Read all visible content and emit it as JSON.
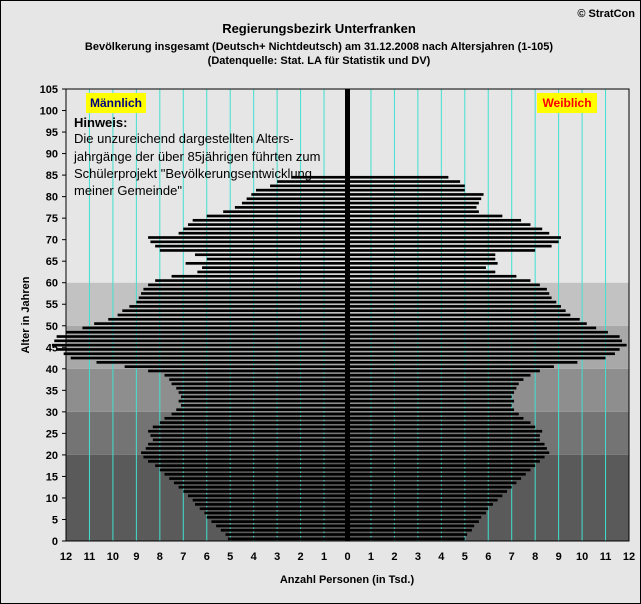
{
  "copyright": "© StratCon",
  "chart_data": {
    "type": "bar",
    "orientation": "horizontal-population-pyramid",
    "title": "Regierungsbezirk Unterfranken",
    "subtitle1": "Bevölkerung  insgesamt (Deutsch+ Nichtdeutsch) am 31.12.2008 nach Altersjahren (1-105)",
    "subtitle2": "(Datenquelle: Stat. LA für Statistik und DV)",
    "xlabel": "Anzahl Personen (in Tsd.)",
    "ylabel": "Alter in Jahren",
    "x_ticks": [
      "12",
      "11",
      "10",
      "9",
      "8",
      "7",
      "6",
      "5",
      "4",
      "3",
      "2",
      "1",
      "0",
      "1",
      "2",
      "3",
      "4",
      "5",
      "6",
      "7",
      "8",
      "9",
      "10",
      "11",
      "12"
    ],
    "y_ticks": [
      "0",
      "5",
      "10",
      "15",
      "20",
      "25",
      "30",
      "35",
      "40",
      "45",
      "50",
      "55",
      "60",
      "65",
      "70",
      "75",
      "80",
      "85",
      "90",
      "95",
      "100",
      "105"
    ],
    "xlim": [
      -12,
      12
    ],
    "ylim": [
      0,
      105
    ],
    "grid": true,
    "legend": {
      "male": "Männlich",
      "female": "Weiblich",
      "placement": "top-left / top-right"
    },
    "ages": [
      0,
      1,
      2,
      3,
      4,
      5,
      6,
      7,
      8,
      9,
      10,
      11,
      12,
      13,
      14,
      15,
      16,
      17,
      18,
      19,
      20,
      21,
      22,
      23,
      24,
      25,
      26,
      27,
      28,
      29,
      30,
      31,
      32,
      33,
      34,
      35,
      36,
      37,
      38,
      39,
      40,
      41,
      42,
      43,
      44,
      45,
      46,
      47,
      48,
      49,
      50,
      51,
      52,
      53,
      54,
      55,
      56,
      57,
      58,
      59,
      60,
      61,
      62,
      63,
      64,
      65,
      66,
      67,
      68,
      69,
      70,
      71,
      72,
      73,
      74,
      75,
      76,
      77,
      78,
      79,
      80,
      81,
      82,
      83,
      84
    ],
    "series": [
      {
        "name": "Männlich",
        "color": "#000000",
        "values": [
          5.1,
          5.2,
          5.4,
          5.6,
          5.8,
          6.0,
          6.1,
          6.3,
          6.5,
          6.6,
          6.8,
          7.0,
          7.2,
          7.4,
          7.6,
          7.8,
          8.0,
          8.2,
          8.5,
          8.7,
          8.8,
          8.6,
          8.5,
          8.3,
          8.4,
          8.5,
          8.3,
          8.0,
          7.8,
          7.5,
          7.3,
          7.1,
          7.2,
          7.1,
          7.2,
          7.3,
          7.5,
          7.6,
          7.8,
          8.5,
          9.5,
          10.7,
          11.8,
          12.1,
          12.4,
          12.6,
          12.5,
          12.4,
          12.0,
          11.3,
          10.8,
          10.2,
          9.8,
          9.6,
          9.3,
          9.0,
          8.9,
          8.8,
          8.7,
          8.5,
          8.2,
          7.5,
          6.4,
          6.2,
          6.9,
          6.0,
          6.5,
          8.0,
          8.2,
          8.4,
          8.5,
          7.2,
          7.0,
          6.8,
          6.6,
          6.0,
          5.3,
          4.8,
          4.5,
          4.3,
          4.1,
          3.9,
          3.3,
          3.0,
          2.4
        ]
      },
      {
        "name": "Weiblich",
        "color": "#000000",
        "values": [
          5.0,
          5.1,
          5.3,
          5.4,
          5.6,
          5.7,
          5.9,
          6.0,
          6.2,
          6.4,
          6.6,
          6.8,
          7.0,
          7.2,
          7.4,
          7.6,
          7.8,
          8.0,
          8.2,
          8.4,
          8.6,
          8.5,
          8.4,
          8.2,
          8.2,
          8.3,
          8.0,
          7.8,
          7.5,
          7.3,
          7.1,
          7.0,
          7.1,
          7.0,
          7.1,
          7.2,
          7.3,
          7.5,
          7.8,
          8.2,
          8.8,
          9.8,
          11.0,
          11.4,
          11.6,
          11.9,
          11.7,
          11.6,
          11.1,
          10.6,
          10.2,
          9.9,
          9.5,
          9.3,
          9.1,
          8.9,
          8.7,
          8.6,
          8.5,
          8.2,
          7.8,
          7.2,
          6.3,
          5.9,
          6.4,
          6.3,
          6.3,
          8.0,
          8.7,
          9.0,
          9.1,
          8.6,
          8.3,
          7.8,
          7.4,
          6.6,
          5.6,
          5.5,
          5.6,
          5.7,
          5.8,
          5.0,
          5.0,
          4.8,
          4.3
        ]
      }
    ],
    "annotation": {
      "heading": "Hinweis:",
      "lines": [
        "Die unzureichend dargestellten Alters-",
        "jahrgänge der über 85jährigen führten zum",
        "Schülerprojekt \"Bevölkerungsentwicklung",
        "meiner Gemeinde\""
      ]
    },
    "colors": {
      "bars": "#000000",
      "gridlines": "#40e0d0",
      "centerline": "#000000",
      "legend_box": "#ffff00",
      "male_text": "#000080",
      "female_text": "#ff0000",
      "bands": [
        "#5a5a5a",
        "#747474",
        "#8e8e8e",
        "#a8a8a8",
        "#c2c2c2",
        "#e6e6e6"
      ]
    }
  }
}
